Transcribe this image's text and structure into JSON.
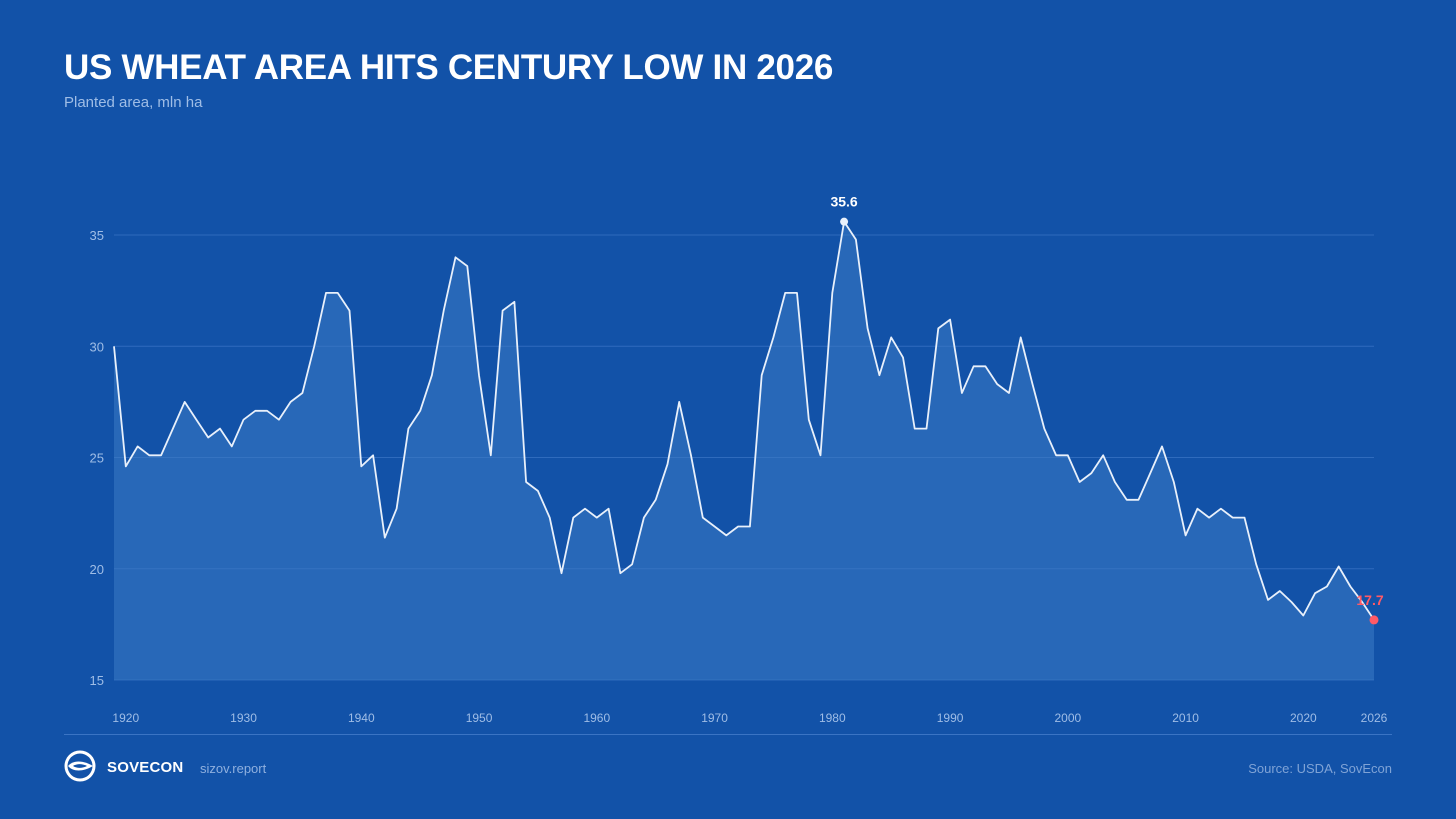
{
  "colors": {
    "background": "#1252a8",
    "grid": "#2f6bbd",
    "axis_text": "#9fbde6",
    "line": "#e8f0fb",
    "area_fill": "#3b7ac4",
    "highlight": "#ff5a66"
  },
  "footer": {
    "brand": "SOVECON",
    "site": "sizov.report",
    "source": "Source: USDA, SovEcon",
    "logo_icon": "sovecon-logo-icon"
  },
  "chart_data": {
    "type": "area",
    "title": "US WHEAT AREA HITS CENTURY LOW IN 2026",
    "subtitle": "Planted area, mln ha",
    "xlabel": "",
    "ylabel": "",
    "xlim": [
      1919,
      2026
    ],
    "ylim": [
      15,
      35
    ],
    "yticks": [
      15,
      20,
      25,
      30,
      35
    ],
    "xticks": [
      1920,
      1930,
      1940,
      1950,
      1960,
      1970,
      1980,
      1990,
      2000,
      2010,
      2020,
      2026
    ],
    "grid": true,
    "annotations": [
      {
        "year": 1981,
        "value": 35.6,
        "label": "35.6",
        "style": "peak"
      },
      {
        "year": 2026,
        "value": 17.7,
        "label": "17.7",
        "style": "highlight"
      }
    ],
    "series": [
      {
        "name": "Planted area",
        "x": [
          1919,
          1920,
          1921,
          1922,
          1923,
          1924,
          1925,
          1926,
          1927,
          1928,
          1929,
          1930,
          1931,
          1932,
          1933,
          1934,
          1935,
          1936,
          1937,
          1938,
          1939,
          1940,
          1941,
          1942,
          1943,
          1944,
          1945,
          1946,
          1947,
          1948,
          1949,
          1950,
          1951,
          1952,
          1953,
          1954,
          1955,
          1956,
          1957,
          1958,
          1959,
          1960,
          1961,
          1962,
          1963,
          1964,
          1965,
          1966,
          1967,
          1968,
          1969,
          1970,
          1971,
          1972,
          1973,
          1974,
          1975,
          1976,
          1977,
          1978,
          1979,
          1980,
          1981,
          1982,
          1983,
          1984,
          1985,
          1986,
          1987,
          1988,
          1989,
          1990,
          1991,
          1992,
          1993,
          1994,
          1995,
          1996,
          1997,
          1998,
          1999,
          2000,
          2001,
          2002,
          2003,
          2004,
          2005,
          2006,
          2007,
          2008,
          2009,
          2010,
          2011,
          2012,
          2013,
          2014,
          2015,
          2016,
          2017,
          2018,
          2019,
          2020,
          2021,
          2022,
          2023,
          2024,
          2025,
          2026
        ],
        "values": [
          30.0,
          24.6,
          25.5,
          25.1,
          25.1,
          26.3,
          27.5,
          26.7,
          25.9,
          26.3,
          25.5,
          26.7,
          27.1,
          27.1,
          26.7,
          27.5,
          27.9,
          30.0,
          32.4,
          32.4,
          31.6,
          24.6,
          25.1,
          21.4,
          22.7,
          26.3,
          27.1,
          28.7,
          31.6,
          34.0,
          33.6,
          28.7,
          25.1,
          31.6,
          32.0,
          23.9,
          23.5,
          22.3,
          19.8,
          22.3,
          22.7,
          22.3,
          22.7,
          19.8,
          20.2,
          22.3,
          23.1,
          24.7,
          27.5,
          25.1,
          22.3,
          21.9,
          21.5,
          21.9,
          21.9,
          28.7,
          30.4,
          32.4,
          32.4,
          26.7,
          25.1,
          32.4,
          35.6,
          34.8,
          30.8,
          28.7,
          30.4,
          29.5,
          26.3,
          26.3,
          30.8,
          31.2,
          27.9,
          29.1,
          29.1,
          28.3,
          27.9,
          30.4,
          28.3,
          26.3,
          25.1,
          25.1,
          23.9,
          24.3,
          25.1,
          23.9,
          23.1,
          23.1,
          24.3,
          25.5,
          23.9,
          21.5,
          22.7,
          22.3,
          22.7,
          22.3,
          22.3,
          20.2,
          18.6,
          19.0,
          18.5,
          17.9,
          18.9,
          19.2,
          20.1,
          19.2,
          18.5,
          17.7
        ]
      }
    ]
  }
}
